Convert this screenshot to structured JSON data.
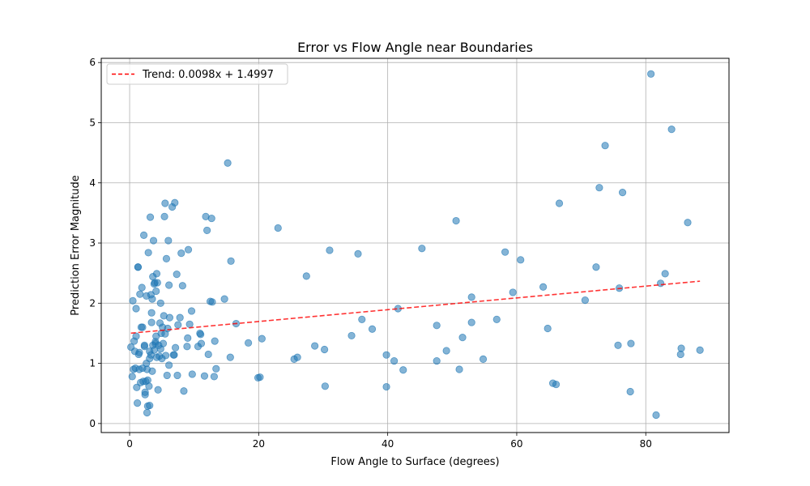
{
  "chart_data": {
    "type": "scatter",
    "title": "Error vs Flow Angle near Boundaries",
    "xlabel": "Flow Angle to Surface (degrees)",
    "ylabel": "Prediction Error Magnitude",
    "xlim": [
      -4.4,
      92.9
    ],
    "ylim": [
      -0.15,
      6.07
    ],
    "x_ticks": [
      0,
      20,
      40,
      60,
      80
    ],
    "y_ticks": [
      0,
      1,
      2,
      3,
      4,
      5,
      6
    ],
    "grid": true,
    "legend": {
      "location": "upper-left",
      "entries": [
        "Trend: 0.0098x + 1.4997"
      ]
    },
    "colors": {
      "points": "#1f77b4",
      "trend": "#ff0000",
      "grid": "#b0b0b0"
    },
    "series": [
      {
        "type": "scatter",
        "points": [
          [
            0.2,
            1.27
          ],
          [
            0.4,
            0.78
          ],
          [
            0.5,
            2.04
          ],
          [
            0.6,
            0.9
          ],
          [
            0.7,
            1.37
          ],
          [
            0.8,
            1.2
          ],
          [
            0.9,
            0.92
          ],
          [
            1.0,
            1.45
          ],
          [
            1.0,
            1.91
          ],
          [
            1.1,
            0.6
          ],
          [
            1.2,
            0.34
          ],
          [
            1.3,
            2.6
          ],
          [
            1.3,
            2.6
          ],
          [
            1.4,
            1.15
          ],
          [
            1.5,
            1.18
          ],
          [
            1.5,
            0.9
          ],
          [
            1.6,
            2.15
          ],
          [
            1.7,
            0.68
          ],
          [
            1.8,
            1.6
          ],
          [
            1.9,
            2.26
          ],
          [
            2.0,
            0.92
          ],
          [
            2.0,
            1.6
          ],
          [
            2.1,
            0.7
          ],
          [
            2.2,
            3.13
          ],
          [
            2.3,
            1.3
          ],
          [
            2.3,
            1.28
          ],
          [
            2.4,
            0.52
          ],
          [
            2.4,
            0.48
          ],
          [
            2.5,
            0.7
          ],
          [
            2.6,
            2.12
          ],
          [
            2.6,
            1.0
          ],
          [
            2.7,
            0.9
          ],
          [
            2.7,
            0.18
          ],
          [
            2.8,
            0.72
          ],
          [
            2.8,
            0.29
          ],
          [
            2.9,
            2.84
          ],
          [
            3.0,
            0.62
          ],
          [
            3.1,
            0.3
          ],
          [
            3.1,
            1.2
          ],
          [
            3.1,
            1.08
          ],
          [
            3.2,
            3.43
          ],
          [
            3.3,
            2.14
          ],
          [
            3.3,
            1.14
          ],
          [
            3.4,
            1.84
          ],
          [
            3.4,
            1.68
          ],
          [
            3.5,
            2.07
          ],
          [
            3.5,
            0.87
          ],
          [
            3.6,
            2.44
          ],
          [
            3.6,
            1.3
          ],
          [
            3.7,
            3.04
          ],
          [
            3.8,
            1.22
          ],
          [
            3.8,
            2.32
          ],
          [
            3.9,
            2.34
          ],
          [
            4.0,
            1.36
          ],
          [
            4.0,
            1.33
          ],
          [
            4.1,
            2.2
          ],
          [
            4.1,
            1.45
          ],
          [
            4.2,
            2.49
          ],
          [
            4.2,
            1.1
          ],
          [
            4.3,
            2.34
          ],
          [
            4.4,
            0.56
          ],
          [
            4.5,
            1.3
          ],
          [
            4.6,
            1.12
          ],
          [
            4.7,
            1.67
          ],
          [
            4.8,
            1.24
          ],
          [
            4.8,
            2.0
          ],
          [
            4.9,
            1.5
          ],
          [
            5.0,
            1.08
          ],
          [
            5.1,
            1.6
          ],
          [
            5.2,
            1.33
          ],
          [
            5.3,
            1.79
          ],
          [
            5.4,
            3.44
          ],
          [
            5.5,
            3.66
          ],
          [
            5.5,
            1.49
          ],
          [
            5.6,
            1.13
          ],
          [
            5.7,
            2.74
          ],
          [
            5.8,
            0.8
          ],
          [
            5.9,
            1.58
          ],
          [
            6.0,
            3.04
          ],
          [
            6.1,
            2.3
          ],
          [
            6.1,
            0.97
          ],
          [
            6.2,
            1.76
          ],
          [
            6.6,
            3.6
          ],
          [
            6.8,
            1.14
          ],
          [
            6.9,
            1.14
          ],
          [
            7.0,
            3.67
          ],
          [
            7.1,
            1.26
          ],
          [
            7.3,
            2.48
          ],
          [
            7.4,
            0.8
          ],
          [
            7.5,
            1.64
          ],
          [
            7.8,
            1.76
          ],
          [
            8.0,
            2.83
          ],
          [
            8.2,
            2.29
          ],
          [
            8.4,
            0.54
          ],
          [
            8.9,
            1.28
          ],
          [
            9.0,
            1.42
          ],
          [
            9.1,
            2.89
          ],
          [
            9.3,
            1.65
          ],
          [
            9.6,
            1.87
          ],
          [
            9.7,
            0.82
          ],
          [
            10.6,
            1.28
          ],
          [
            10.9,
            1.5
          ],
          [
            11.0,
            1.48
          ],
          [
            11.1,
            1.33
          ],
          [
            11.6,
            0.79
          ],
          [
            11.8,
            3.44
          ],
          [
            12.0,
            3.21
          ],
          [
            12.2,
            1.15
          ],
          [
            12.5,
            2.03
          ],
          [
            12.7,
            3.41
          ],
          [
            12.8,
            2.02
          ],
          [
            13.1,
            0.78
          ],
          [
            13.2,
            1.37
          ],
          [
            13.4,
            0.91
          ],
          [
            14.7,
            2.07
          ],
          [
            15.2,
            4.33
          ],
          [
            15.6,
            1.1
          ],
          [
            15.7,
            2.7
          ],
          [
            16.5,
            1.66
          ],
          [
            18.4,
            1.34
          ],
          [
            19.9,
            0.76
          ],
          [
            20.2,
            0.77
          ],
          [
            20.5,
            1.41
          ],
          [
            23.0,
            3.25
          ],
          [
            25.5,
            1.07
          ],
          [
            26.0,
            1.1
          ],
          [
            27.4,
            2.45
          ],
          [
            28.7,
            1.29
          ],
          [
            30.2,
            1.23
          ],
          [
            30.3,
            0.62
          ],
          [
            31.0,
            2.88
          ],
          [
            34.4,
            1.46
          ],
          [
            35.4,
            2.82
          ],
          [
            36.0,
            1.73
          ],
          [
            37.6,
            1.57
          ],
          [
            39.8,
            1.14
          ],
          [
            39.8,
            0.61
          ],
          [
            41.0,
            1.04
          ],
          [
            41.6,
            1.91
          ],
          [
            42.4,
            0.89
          ],
          [
            45.3,
            2.91
          ],
          [
            47.6,
            1.63
          ],
          [
            47.6,
            1.04
          ],
          [
            49.1,
            1.21
          ],
          [
            50.6,
            3.37
          ],
          [
            51.1,
            0.9
          ],
          [
            51.6,
            1.43
          ],
          [
            53.0,
            2.1
          ],
          [
            53.0,
            1.68
          ],
          [
            54.8,
            1.07
          ],
          [
            56.9,
            1.73
          ],
          [
            58.2,
            2.85
          ],
          [
            59.4,
            2.18
          ],
          [
            60.6,
            2.72
          ],
          [
            64.1,
            2.27
          ],
          [
            64.8,
            1.58
          ],
          [
            65.6,
            0.67
          ],
          [
            66.1,
            0.65
          ],
          [
            66.6,
            3.66
          ],
          [
            70.6,
            2.05
          ],
          [
            72.3,
            2.6
          ],
          [
            72.8,
            3.92
          ],
          [
            73.7,
            4.62
          ],
          [
            75.7,
            1.3
          ],
          [
            75.9,
            2.25
          ],
          [
            76.4,
            3.84
          ],
          [
            77.6,
            0.53
          ],
          [
            77.7,
            1.33
          ],
          [
            80.8,
            5.81
          ],
          [
            81.6,
            0.14
          ],
          [
            82.3,
            2.33
          ],
          [
            83.0,
            2.49
          ],
          [
            84.0,
            4.89
          ],
          [
            85.4,
            1.15
          ],
          [
            85.5,
            1.25
          ],
          [
            86.5,
            3.34
          ],
          [
            88.4,
            1.22
          ]
        ]
      },
      {
        "type": "line",
        "name": "Trend: 0.0098x + 1.4997",
        "style": "dashed",
        "slope": 0.0098,
        "intercept": 1.4997,
        "x_range": [
          0.2,
          88.4
        ]
      }
    ]
  }
}
